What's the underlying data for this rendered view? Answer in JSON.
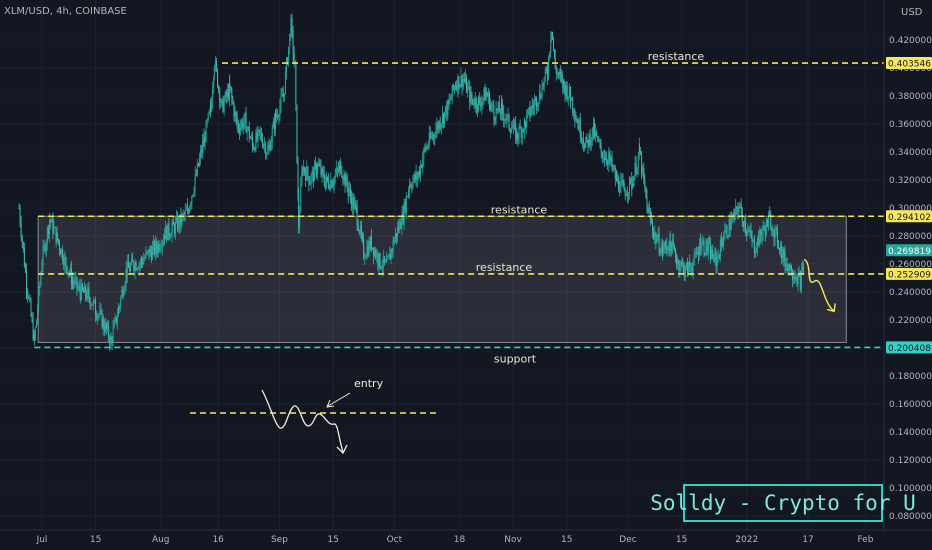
{
  "chart_data": {
    "type": "candlestick",
    "symbol": "XLM/USD, 4h, COINBASE",
    "currency": "USD",
    "ylim": [
      0.07,
      0.44
    ],
    "y_ticks": [
      0.08,
      0.1,
      0.12,
      0.14,
      0.16,
      0.18,
      0.2,
      0.22,
      0.24,
      0.26,
      0.28,
      0.3,
      0.32,
      0.34,
      0.36,
      0.38,
      0.4,
      0.42
    ],
    "y_tick_labels": [
      "0.080000",
      "0.100000",
      "0.120000",
      "0.140000",
      "0.160000",
      "0.180000",
      "0.200000",
      "0.220000",
      "0.240000",
      "0.260000",
      "0.280000",
      "0.300000",
      "0.320000",
      "0.340000",
      "0.360000",
      "0.380000",
      "0.400000",
      "0.420000"
    ],
    "x_ticks": [
      {
        "label": "Jul",
        "day": 0
      },
      {
        "label": "15",
        "day": 14
      },
      {
        "label": "Aug",
        "day": 31
      },
      {
        "label": "16",
        "day": 46
      },
      {
        "label": "Sep",
        "day": 62
      },
      {
        "label": "15",
        "day": 76
      },
      {
        "label": "Oct",
        "day": 92
      },
      {
        "label": "18",
        "day": 109
      },
      {
        "label": "Nov",
        "day": 123
      },
      {
        "label": "15",
        "day": 137
      },
      {
        "label": "Dec",
        "day": 153
      },
      {
        "label": "15",
        "day": 167
      },
      {
        "label": "2022",
        "day": 184
      },
      {
        "label": "17",
        "day": 200
      },
      {
        "label": "Feb",
        "day": 215
      }
    ],
    "price_path": [
      [
        -6,
        0.3
      ],
      [
        -4,
        0.245
      ],
      [
        -2,
        0.205
      ],
      [
        0,
        0.262
      ],
      [
        2,
        0.292
      ],
      [
        4,
        0.278
      ],
      [
        6,
        0.262
      ],
      [
        8,
        0.248
      ],
      [
        10,
        0.24
      ],
      [
        12,
        0.238
      ],
      [
        14,
        0.228
      ],
      [
        16,
        0.218
      ],
      [
        18,
        0.205
      ],
      [
        20,
        0.228
      ],
      [
        22,
        0.255
      ],
      [
        24,
        0.26
      ],
      [
        26,
        0.262
      ],
      [
        28,
        0.268
      ],
      [
        30,
        0.272
      ],
      [
        32,
        0.282
      ],
      [
        34,
        0.285
      ],
      [
        36,
        0.29
      ],
      [
        38,
        0.298
      ],
      [
        40,
        0.32
      ],
      [
        42,
        0.345
      ],
      [
        44,
        0.37
      ],
      [
        45,
        0.405
      ],
      [
        47,
        0.372
      ],
      [
        49,
        0.385
      ],
      [
        51,
        0.358
      ],
      [
        53,
        0.362
      ],
      [
        55,
        0.345
      ],
      [
        57,
        0.352
      ],
      [
        59,
        0.34
      ],
      [
        61,
        0.365
      ],
      [
        63,
        0.38
      ],
      [
        65,
        0.43
      ],
      [
        66,
        0.4
      ],
      [
        67,
        0.288
      ],
      [
        68,
        0.33
      ],
      [
        70,
        0.32
      ],
      [
        72,
        0.33
      ],
      [
        74,
        0.318
      ],
      [
        76,
        0.32
      ],
      [
        78,
        0.33
      ],
      [
        80,
        0.312
      ],
      [
        82,
        0.298
      ],
      [
        84,
        0.268
      ],
      [
        86,
        0.275
      ],
      [
        88,
        0.262
      ],
      [
        90,
        0.258
      ],
      [
        92,
        0.278
      ],
      [
        94,
        0.292
      ],
      [
        96,
        0.318
      ],
      [
        98,
        0.322
      ],
      [
        100,
        0.342
      ],
      [
        102,
        0.352
      ],
      [
        104,
        0.362
      ],
      [
        106,
        0.372
      ],
      [
        108,
        0.39
      ],
      [
        110,
        0.392
      ],
      [
        112,
        0.378
      ],
      [
        114,
        0.375
      ],
      [
        116,
        0.382
      ],
      [
        118,
        0.368
      ],
      [
        120,
        0.37
      ],
      [
        122,
        0.36
      ],
      [
        124,
        0.352
      ],
      [
        126,
        0.36
      ],
      [
        128,
        0.372
      ],
      [
        130,
        0.382
      ],
      [
        132,
        0.398
      ],
      [
        133,
        0.43
      ],
      [
        134,
        0.4
      ],
      [
        136,
        0.388
      ],
      [
        138,
        0.38
      ],
      [
        140,
        0.36
      ],
      [
        142,
        0.345
      ],
      [
        144,
        0.355
      ],
      [
        146,
        0.34
      ],
      [
        148,
        0.335
      ],
      [
        150,
        0.32
      ],
      [
        152,
        0.312
      ],
      [
        154,
        0.318
      ],
      [
        156,
        0.34
      ],
      [
        158,
        0.3
      ],
      [
        160,
        0.28
      ],
      [
        162,
        0.27
      ],
      [
        164,
        0.275
      ],
      [
        166,
        0.262
      ],
      [
        168,
        0.255
      ],
      [
        170,
        0.26
      ],
      [
        172,
        0.275
      ],
      [
        174,
        0.27
      ],
      [
        176,
        0.262
      ],
      [
        178,
        0.28
      ],
      [
        180,
        0.29
      ],
      [
        182,
        0.3
      ],
      [
        184,
        0.285
      ],
      [
        186,
        0.272
      ],
      [
        188,
        0.282
      ],
      [
        190,
        0.292
      ],
      [
        192,
        0.278
      ],
      [
        194,
        0.262
      ],
      [
        196,
        0.255
      ],
      [
        198,
        0.248
      ],
      [
        199,
        0.259
      ]
    ],
    "levels": [
      {
        "name": "resistance",
        "value": 0.403546,
        "label": "0.403546",
        "color": "#f7e85a",
        "style": "dashed"
      },
      {
        "name": "resistance",
        "value": 0.294102,
        "label": "0.294102",
        "color": "#f7e85a",
        "style": "dashed"
      },
      {
        "name": "resistance",
        "value": 0.252909,
        "label": "0.252909",
        "color": "#f7e85a",
        "style": "dashed"
      },
      {
        "name": "support",
        "value": 0.200408,
        "label": "0.200408",
        "color": "#2fd3c4",
        "style": "dashed"
      }
    ],
    "last_price": {
      "value": 0.269819,
      "label": "0.269819"
    },
    "range_box": {
      "from_day": -1,
      "to_day": 210,
      "top": 0.294102,
      "bottom": 0.204
    },
    "annotation": {
      "text": "entry"
    },
    "watermark": "Solldy - Crypto for U"
  }
}
